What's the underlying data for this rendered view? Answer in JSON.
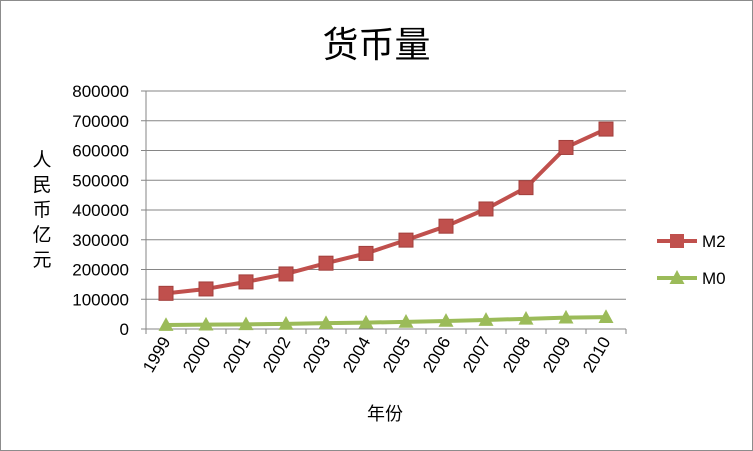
{
  "chart_data": {
    "type": "line",
    "title": "货币量",
    "xlabel": "年份",
    "ylabel": "人民币亿元",
    "categories": [
      "1999",
      "2000",
      "2001",
      "2002",
      "2003",
      "2004",
      "2005",
      "2006",
      "2007",
      "2008",
      "2009",
      "2010"
    ],
    "ylim": [
      0,
      800000
    ],
    "yticks": [
      0,
      100000,
      200000,
      300000,
      400000,
      500000,
      600000,
      700000,
      800000
    ],
    "grid": true,
    "legend_position": "right",
    "series": [
      {
        "name": "M2",
        "color": "#c0504d",
        "marker": "square",
        "values": [
          119898,
          134610,
          158302,
          185007,
          221223,
          254107,
          298756,
          345578,
          403442,
          475167,
          610225,
          672000
        ]
      },
      {
        "name": "M0",
        "color": "#9bbb59",
        "marker": "triangle",
        "values": [
          13456,
          14653,
          15689,
          17278,
          19746,
          21468,
          24032,
          27073,
          30375,
          34219,
          38246,
          40000
        ]
      }
    ]
  }
}
